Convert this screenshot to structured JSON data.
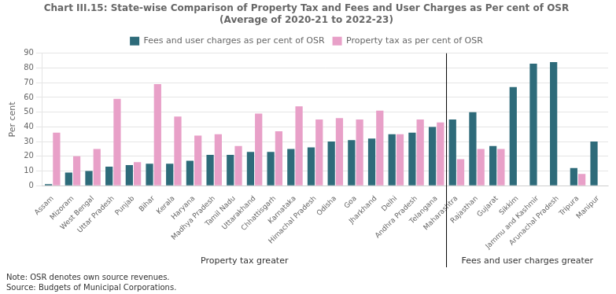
{
  "chart_data": {
    "type": "bar",
    "title": "Chart III.15: State-wise Comparison of Property Tax and Fees and User Charges as Per cent of OSR\n(Average of 2020-21 to 2022-23)",
    "ylabel": "Per cent",
    "categories": [
      "Assam",
      "Mizoram",
      "West Bengal",
      "Uttar Pradesh",
      "Punjab",
      "Bihar",
      "Kerala",
      "Haryana",
      "Madhya Pradesh",
      "Tamil Nadu",
      "Uttarakhand",
      "Chhattisgarh",
      "Karnataka",
      "Himachal Pradesh",
      "Odisha",
      "Goa",
      "Jharkhand",
      "Delhi",
      "Andhra Pradesh",
      "Telangana",
      "Maharashtra",
      "Rajasthan",
      "Gujarat",
      "Sikkim",
      "Jammu and Kashmir",
      "Arunachal Pradesh",
      "Tripura",
      "Manipur"
    ],
    "series": [
      {
        "name": "Fees and user charges as per cent of OSR",
        "color": "#2e6b7a",
        "values": [
          1,
          9,
          10,
          13,
          14,
          15,
          15,
          17,
          21,
          21,
          23,
          23,
          25,
          26,
          30,
          31,
          32,
          35,
          36,
          40,
          45,
          50,
          27,
          67,
          83,
          84,
          12,
          30
        ]
      },
      {
        "name": "Property tax as per cent of OSR",
        "color": "#e8a0c8",
        "values": [
          36,
          20,
          25,
          59,
          16,
          69,
          47,
          34,
          35,
          27,
          49,
          37,
          54,
          45,
          46,
          45,
          51,
          35,
          45,
          43,
          18,
          25,
          25,
          0,
          0,
          0,
          8,
          0
        ]
      }
    ],
    "annotations": [
      {
        "text": "Property tax greater",
        "from": "Assam",
        "to": "Telangana"
      },
      {
        "text": "Fees and user charges greater",
        "from": "Maharashtra",
        "to": "Manipur"
      }
    ],
    "footnotes": [
      "Note: OSR denotes own source revenues.",
      "Source: Budgets of Municipal Corporations."
    ],
    "ylim": [
      0,
      90
    ],
    "yticks": [
      0,
      10,
      20,
      30,
      40,
      50,
      60,
      70,
      80,
      90
    ],
    "grid": true,
    "legend": "top"
  }
}
